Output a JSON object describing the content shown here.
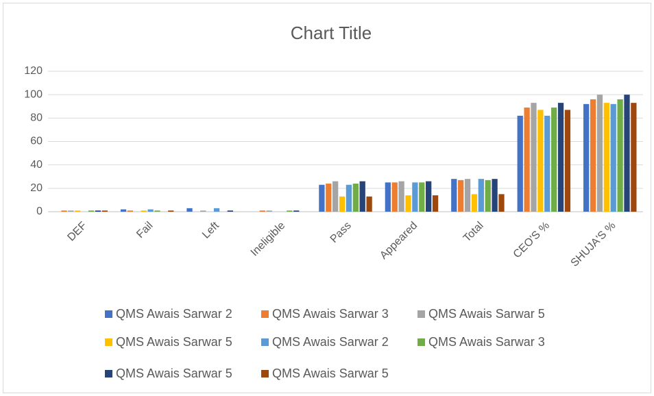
{
  "chart_data": {
    "type": "bar",
    "title": "Chart Title",
    "categories": [
      "DEF",
      "Fail",
      "Left",
      "Ineligible",
      "Pass",
      "Appeared",
      "Total",
      "CEO'S %",
      "SHUJA'S %"
    ],
    "series": [
      {
        "name": "QMS Awais Sarwar 2",
        "color": "#4472c4",
        "values": [
          0,
          2,
          3,
          0,
          23,
          25,
          28,
          82,
          92
        ]
      },
      {
        "name": "QMS Awais Sarwar 3",
        "color": "#ed7d31",
        "values": [
          1,
          1,
          0,
          1,
          24,
          25,
          27,
          89,
          96
        ]
      },
      {
        "name": "QMS Awais Sarwar 5",
        "color": "#a5a5a5",
        "values": [
          1,
          0,
          1,
          1,
          26,
          26,
          28,
          93,
          100
        ]
      },
      {
        "name": "QMS Awais Sarwar 5",
        "color": "#ffc000",
        "values": [
          1,
          1,
          0,
          0,
          13,
          14,
          15,
          87,
          93
        ]
      },
      {
        "name": "QMS Awais Sarwar 2",
        "color": "#5b9bd5",
        "values": [
          0,
          2,
          3,
          0,
          23,
          25,
          28,
          82,
          92
        ]
      },
      {
        "name": "QMS Awais Sarwar 3",
        "color": "#70ad47",
        "values": [
          1,
          1,
          0,
          1,
          24,
          25,
          27,
          89,
          96
        ]
      },
      {
        "name": "QMS Awais Sarwar 5",
        "color": "#264478",
        "values": [
          1,
          0,
          1,
          1,
          26,
          26,
          28,
          93,
          100
        ]
      },
      {
        "name": "QMS Awais Sarwar 5",
        "color": "#9e480e",
        "values": [
          1,
          1,
          0,
          0,
          13,
          14,
          15,
          87,
          93
        ]
      }
    ],
    "ylim": [
      0,
      120
    ],
    "yticks": [
      0,
      20,
      40,
      60,
      80,
      100,
      120
    ],
    "grid": true,
    "legend": "bottom"
  }
}
